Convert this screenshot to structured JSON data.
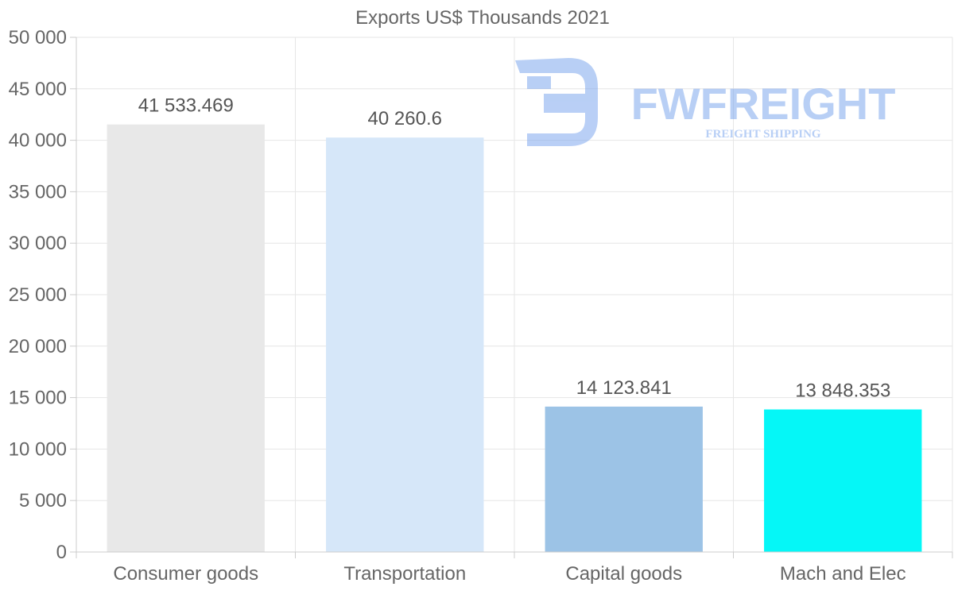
{
  "chart_data": {
    "type": "bar",
    "title": "Exports US$ Thousands 2021",
    "categories": [
      "Consumer goods",
      "Transportation",
      "Capital goods",
      "Mach and Elec"
    ],
    "values": [
      41533.469,
      40260.6,
      14123.841,
      13848.353
    ],
    "value_labels": [
      "41 533.469",
      "40 260.6",
      "14 123.841",
      "13 848.353"
    ],
    "bar_colors": [
      "#e8e8e8",
      "#d6e7f9",
      "#9cc3e6",
      "#05f7f7"
    ],
    "ylim": [
      0,
      50000
    ],
    "yticks": [
      0,
      5000,
      10000,
      15000,
      20000,
      25000,
      30000,
      35000,
      40000,
      45000,
      50000
    ],
    "ytick_labels": [
      "0",
      "5 000",
      "10 000",
      "15 000",
      "20 000",
      "25 000",
      "30 000",
      "35 000",
      "40 000",
      "45 000",
      "50 000"
    ],
    "xlabel": "",
    "ylabel": "",
    "grid": true
  },
  "watermark": {
    "name": "FWFREIGHT",
    "tagline": "FREIGHT SHIPPING",
    "color": "#7fa8ee"
  }
}
